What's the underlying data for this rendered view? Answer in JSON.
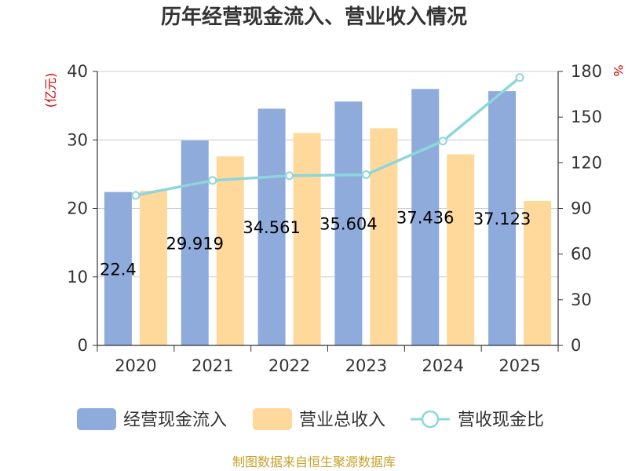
{
  "chart_data": {
    "type": "bar",
    "title": "历年经营现金流入、营业收入情况",
    "categories": [
      "2020",
      "2021",
      "2022",
      "2023",
      "2024",
      "2025"
    ],
    "series": [
      {
        "name": "经营现金流入",
        "type": "bar",
        "axis": "left",
        "color": "#8eabdb",
        "values": [
          22.4,
          29.919,
          34.561,
          35.604,
          37.436,
          37.123
        ],
        "labels": [
          "22.4",
          "29.919",
          "34.561",
          "35.604",
          "37.436",
          "37.123"
        ]
      },
      {
        "name": "营业总收入",
        "type": "bar",
        "axis": "left",
        "color": "#ffd99b",
        "values": [
          22.6,
          27.6,
          31.0,
          31.7,
          27.9,
          21.1
        ]
      },
      {
        "name": "营收现金比",
        "type": "line",
        "axis": "right",
        "color": "#8ed6db",
        "values": [
          98.6,
          108.4,
          111.5,
          112.2,
          134.3,
          176.0
        ]
      }
    ],
    "left_axis": {
      "unit": "(亿元)",
      "ylim": [
        0,
        40
      ],
      "ticks": [
        "0",
        "10",
        "20",
        "30",
        "40"
      ]
    },
    "right_axis": {
      "unit": "%",
      "ylim": [
        0,
        180
      ],
      "ticks": [
        "0",
        "30",
        "60",
        "90",
        "120",
        "150",
        "180"
      ]
    },
    "grid": true,
    "legend_position": "bottom",
    "source": "制图数据来自恒生聚源数据库"
  }
}
